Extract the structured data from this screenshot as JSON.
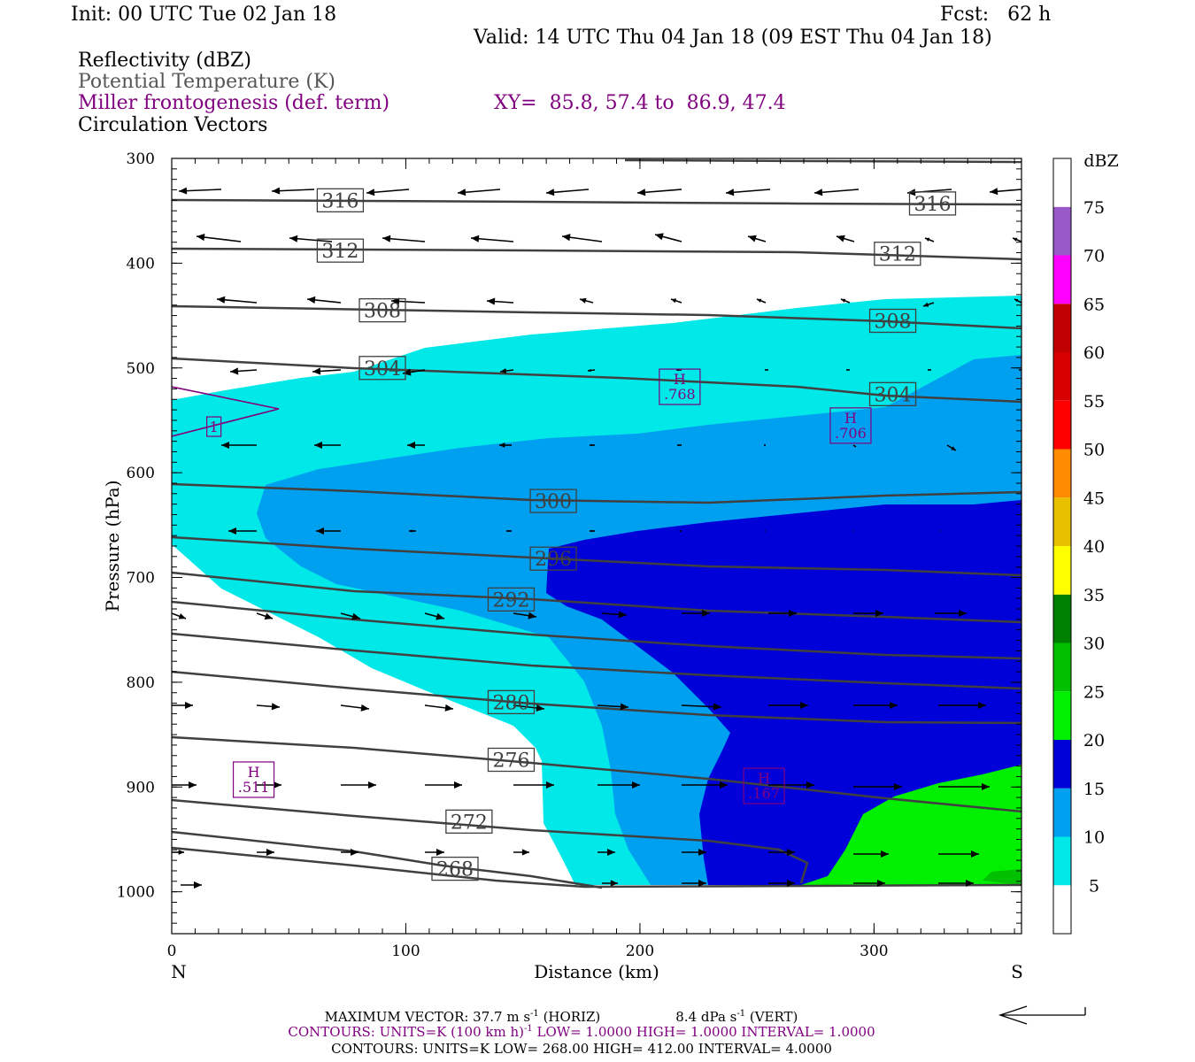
{
  "header": {
    "init": "Init: 00 UTC Tue 02 Jan 18",
    "fcst": "Fcst:   62 h",
    "valid": "Valid: 14 UTC Thu 04 Jan 18 (09 EST Thu 04 Jan 18)"
  },
  "legend_lines": {
    "reflectivity": "Reflectivity (dBZ)",
    "potential_temperature": "Potential Temperature (K)",
    "miller": "Miller frontogenesis (def. term)",
    "xy": "XY=  85.8, 57.4 to  86.9, 47.4",
    "circulation": "Circulation Vectors"
  },
  "colors": {
    "refl_5": "#00e8e8",
    "refl_10": "#00a0f0",
    "refl_15": "#0000d8",
    "refl_20": "#00f000",
    "refl_25": "#00c000",
    "refl_30": "#008000",
    "refl_35": "#ffff00",
    "refl_40": "#e8c000",
    "refl_45": "#ff8c00",
    "refl_50": "#ff0000",
    "refl_55": "#d80000",
    "refl_60": "#c00000",
    "refl_65": "#ff00ff",
    "refl_70": "#9858c8",
    "theta_line": "#404040",
    "frontogenesis": "#800080",
    "vectors": "#000000"
  },
  "chart_data": {
    "type": "cross-section",
    "xlabel": "Distance (km)",
    "ylabel": "Pressure (hPa)",
    "xlim": [
      0,
      363
    ],
    "ylim": [
      1040,
      300
    ],
    "x_ticks": [
      "0",
      "100",
      "200",
      "300"
    ],
    "y_ticks": [
      "300",
      "400",
      "500",
      "600",
      "700",
      "800",
      "900",
      "1000"
    ],
    "left_end_label": "N",
    "right_end_label": "S",
    "colorbar": {
      "title": "dBZ",
      "levels": [
        "5",
        "10",
        "15",
        "20",
        "25",
        "30",
        "35",
        "40",
        "45",
        "50",
        "55",
        "60",
        "65",
        "70",
        "75"
      ]
    },
    "theta_contour_labels": [
      {
        "value": "316",
        "x": 72,
        "p": 340
      },
      {
        "value": "316",
        "x": 325,
        "p": 343
      },
      {
        "value": "312",
        "x": 72,
        "p": 388
      },
      {
        "value": "312",
        "x": 310,
        "p": 391
      },
      {
        "value": "308",
        "x": 90,
        "p": 445
      },
      {
        "value": "308",
        "x": 308,
        "p": 455
      },
      {
        "value": "304",
        "x": 90,
        "p": 500
      },
      {
        "value": "304",
        "x": 308,
        "p": 525
      },
      {
        "value": "300",
        "x": 163,
        "p": 627
      },
      {
        "value": "296",
        "x": 163,
        "p": 682
      },
      {
        "value": "292",
        "x": 145,
        "p": 721
      },
      {
        "value": "280",
        "x": 145,
        "p": 819
      },
      {
        "value": "276",
        "x": 145,
        "p": 874
      },
      {
        "value": "272",
        "x": 127,
        "p": 933
      },
      {
        "value": "268",
        "x": 121,
        "p": 978
      }
    ],
    "frontogenesis_labels": [
      {
        "text": "1",
        "x": 18,
        "p": 556
      },
      {
        "text": "H\n.768",
        "x": 217,
        "p": 518
      },
      {
        "text": "H\n.706",
        "x": 290,
        "p": 555
      },
      {
        "text": "H\n.511",
        "x": 35,
        "p": 893
      },
      {
        "text": "H\n.167",
        "x": 253,
        "p": 899
      }
    ],
    "footer": {
      "max_vector": "MAXIMUM VECTOR:  37.7 m s",
      "max_vector_sup": "-1",
      "max_vector_horiz": " (HORIZ)",
      "max_vector_vert": "8.4 dPa s",
      "max_vector_vert_sup": "-1",
      "max_vector_vert_tail": " (VERT)",
      "contours_1a": "CONTOURS:  UNITS=K (100 km h)",
      "contours_1_sup": "-1",
      "contours_1b": "  LOW=  1.0000        HIGH=  1.0000        INTERVAL=   1.0000",
      "contours_2": "CONTOURS:  UNITS=K  LOW=  268.00          HIGH=  412.00          INTERVAL=    4.0000"
    }
  }
}
